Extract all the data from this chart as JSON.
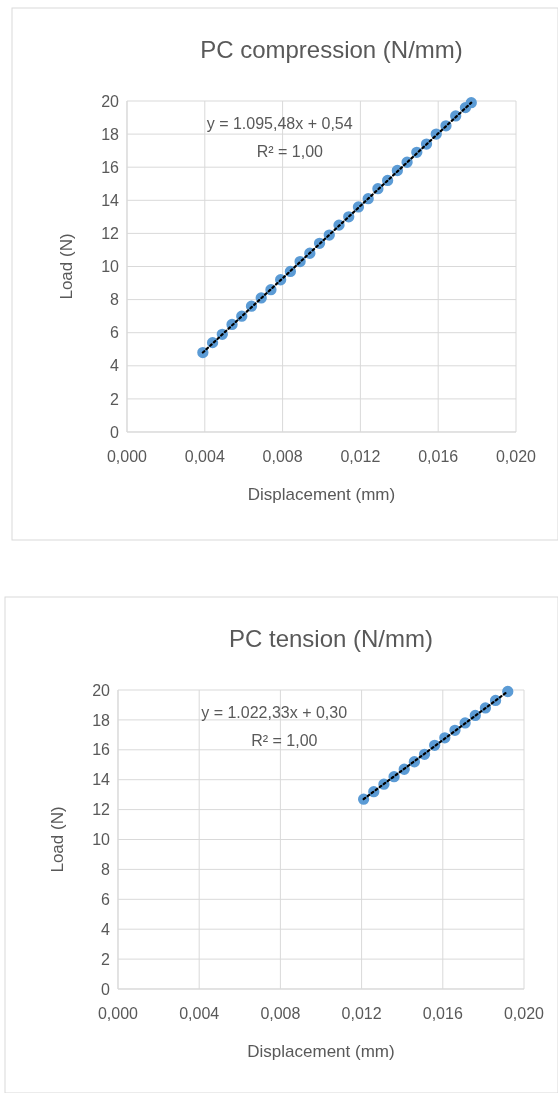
{
  "chart_data": [
    {
      "type": "scatter",
      "title": "PC compression (N/mm)",
      "xlabel": "Displacement (mm)",
      "ylabel": "Load (N)",
      "annotations": [
        "y = 1.095,48x + 0,54",
        "R² = 1,00"
      ],
      "grid": true,
      "marker": "circle",
      "xlim": [
        0,
        0.02
      ],
      "xticks": [
        {
          "value": 0,
          "label": "0,000"
        },
        {
          "value": 0.004,
          "label": "0,004"
        },
        {
          "value": 0.008,
          "label": "0,008"
        },
        {
          "value": 0.012,
          "label": "0,012"
        },
        {
          "value": 0.016,
          "label": "0,016"
        },
        {
          "value": 0.02,
          "label": "0,020"
        }
      ],
      "ylim": [
        0,
        20
      ],
      "yticks": [
        0,
        2,
        4,
        6,
        8,
        10,
        12,
        14,
        16,
        18,
        20
      ],
      "series": [
        {
          "type": "scatter",
          "color": "#5b9bd5",
          "x": [
            0.0039,
            0.0044,
            0.0049,
            0.0054,
            0.0059,
            0.0064,
            0.0069,
            0.0074,
            0.0079,
            0.0084,
            0.0089,
            0.0094,
            0.0099,
            0.0104,
            0.0109,
            0.0114,
            0.0119,
            0.0124,
            0.0129,
            0.0134,
            0.0139,
            0.0144,
            0.0149,
            0.0154,
            0.0159,
            0.0164,
            0.0169,
            0.0174,
            0.0177
          ],
          "values": [
            4.8,
            5.4,
            5.9,
            6.5,
            7.0,
            7.6,
            8.1,
            8.6,
            9.2,
            9.7,
            10.3,
            10.8,
            11.4,
            11.9,
            12.5,
            13.0,
            13.6,
            14.1,
            14.7,
            15.2,
            15.8,
            16.3,
            16.9,
            17.4,
            18.0,
            18.5,
            19.1,
            19.6,
            19.9
          ]
        },
        {
          "type": "line",
          "color": "#000000",
          "line_style": "dotted",
          "marker": "none",
          "x": [
            0.0039,
            0.0177
          ],
          "values": [
            4.8,
            19.9
          ]
        }
      ]
    },
    {
      "type": "scatter",
      "title": "PC tension (N/mm)",
      "xlabel": "Displacement (mm)",
      "ylabel": "Load (N)",
      "annotations": [
        "y = 1.022,33x + 0,30",
        "R² = 1,00"
      ],
      "grid": true,
      "marker": "circle",
      "xlim": [
        0,
        0.02
      ],
      "xticks": [
        {
          "value": 0,
          "label": "0,000"
        },
        {
          "value": 0.004,
          "label": "0,004"
        },
        {
          "value": 0.008,
          "label": "0,008"
        },
        {
          "value": 0.012,
          "label": "0,012"
        },
        {
          "value": 0.016,
          "label": "0,016"
        },
        {
          "value": 0.02,
          "label": "0,020"
        }
      ],
      "ylim": [
        0,
        20
      ],
      "yticks": [
        0,
        2,
        4,
        6,
        8,
        10,
        12,
        14,
        16,
        18,
        20
      ],
      "series": [
        {
          "type": "scatter",
          "color": "#5b9bd5",
          "x": [
            0.0121,
            0.0126,
            0.0131,
            0.0136,
            0.0141,
            0.0146,
            0.0151,
            0.0156,
            0.0161,
            0.0166,
            0.0171,
            0.0176,
            0.0181,
            0.0186,
            0.0192
          ],
          "values": [
            12.7,
            13.2,
            13.7,
            14.2,
            14.7,
            15.2,
            15.7,
            16.3,
            16.8,
            17.3,
            17.8,
            18.3,
            18.8,
            19.3,
            19.9
          ]
        },
        {
          "type": "line",
          "color": "#000000",
          "line_style": "dotted",
          "marker": "none",
          "x": [
            0.0121,
            0.0192
          ],
          "values": [
            12.7,
            19.9
          ]
        }
      ]
    }
  ]
}
